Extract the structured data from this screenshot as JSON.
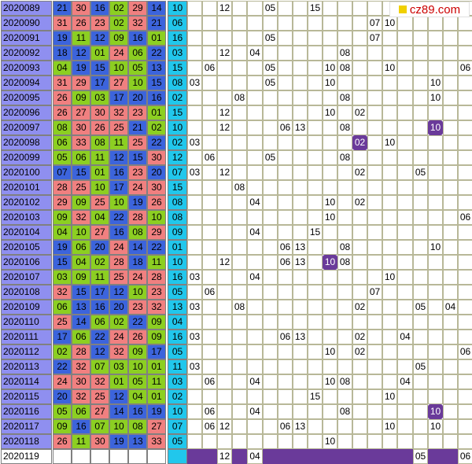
{
  "logo": {
    "text": "cz89.com"
  },
  "colors": {
    "red": "#f08080",
    "green": "#8ccf22",
    "blue": "#3c64dc",
    "blueBall": "#21c7ec",
    "mark": "#6a3a9a",
    "period": "#8f8ff0"
  },
  "rows": [
    {
      "period": "2020089",
      "reds": [
        "21",
        "30",
        "16",
        "02",
        "29",
        "14"
      ],
      "redColors": [
        "b",
        "r",
        "b",
        "g",
        "r",
        "b"
      ],
      "blue": "10",
      "trend": [
        {
          "c": 2,
          "v": "12"
        },
        {
          "c": 5,
          "v": "05"
        },
        {
          "c": 8,
          "v": "15"
        }
      ]
    },
    {
      "period": "2020090",
      "reds": [
        "31",
        "26",
        "23",
        "02",
        "32",
        "21"
      ],
      "redColors": [
        "r",
        "r",
        "r",
        "g",
        "r",
        "b"
      ],
      "blue": "06",
      "trend": [
        {
          "c": 12,
          "v": "07"
        },
        {
          "c": 13,
          "v": "10"
        }
      ]
    },
    {
      "period": "2020091",
      "reds": [
        "19",
        "11",
        "12",
        "09",
        "16",
        "01"
      ],
      "redColors": [
        "b",
        "g",
        "b",
        "g",
        "b",
        "g"
      ],
      "blue": "16",
      "trend": [
        {
          "c": 5,
          "v": "05"
        },
        {
          "c": 12,
          "v": "07"
        }
      ]
    },
    {
      "period": "2020092",
      "reds": [
        "18",
        "12",
        "01",
        "24",
        "06",
        "22"
      ],
      "redColors": [
        "b",
        "b",
        "g",
        "r",
        "g",
        "b"
      ],
      "blue": "03",
      "trend": [
        {
          "c": 2,
          "v": "12"
        },
        {
          "c": 4,
          "v": "04"
        },
        {
          "c": 10,
          "v": "08"
        }
      ]
    },
    {
      "period": "2020093",
      "reds": [
        "04",
        "19",
        "15",
        "10",
        "05",
        "13"
      ],
      "redColors": [
        "g",
        "b",
        "b",
        "g",
        "g",
        "b"
      ],
      "blue": "15",
      "trend": [
        {
          "c": 1,
          "v": "06"
        },
        {
          "c": 5,
          "v": "05"
        },
        {
          "c": 9,
          "v": "10"
        },
        {
          "c": 10,
          "v": "08"
        },
        {
          "c": 13,
          "v": "10"
        },
        {
          "c": 18,
          "v": "06"
        }
      ]
    },
    {
      "period": "2020094",
      "reds": [
        "31",
        "29",
        "17",
        "27",
        "10",
        "15"
      ],
      "redColors": [
        "r",
        "r",
        "b",
        "r",
        "g",
        "b"
      ],
      "blue": "08",
      "trend": [
        {
          "c": 0,
          "v": "03"
        },
        {
          "c": 5,
          "v": "05"
        },
        {
          "c": 9,
          "v": "10"
        },
        {
          "c": 16,
          "v": "10"
        }
      ]
    },
    {
      "period": "2020095",
      "reds": [
        "26",
        "09",
        "03",
        "17",
        "20",
        "16"
      ],
      "redColors": [
        "r",
        "g",
        "g",
        "b",
        "b",
        "b"
      ],
      "blue": "02",
      "trend": [
        {
          "c": 3,
          "v": "08"
        },
        {
          "c": 10,
          "v": "08"
        },
        {
          "c": 16,
          "v": "10"
        }
      ]
    },
    {
      "period": "2020096",
      "reds": [
        "26",
        "27",
        "30",
        "32",
        "23",
        "01"
      ],
      "redColors": [
        "r",
        "r",
        "r",
        "r",
        "r",
        "g"
      ],
      "blue": "15",
      "trend": [
        {
          "c": 2,
          "v": "12"
        },
        {
          "c": 9,
          "v": "10"
        },
        {
          "c": 11,
          "v": "02"
        }
      ]
    },
    {
      "period": "2020097",
      "reds": [
        "08",
        "30",
        "26",
        "25",
        "21",
        "02"
      ],
      "redColors": [
        "g",
        "r",
        "r",
        "r",
        "b",
        "g"
      ],
      "blue": "10",
      "trend": [
        {
          "c": 2,
          "v": "12"
        },
        {
          "c": 6,
          "v": "06"
        },
        {
          "c": 7,
          "v": "13"
        },
        {
          "c": 10,
          "v": "08"
        },
        {
          "c": 16,
          "v": "10",
          "mark": true
        }
      ]
    },
    {
      "period": "2020098",
      "reds": [
        "06",
        "33",
        "08",
        "11",
        "25",
        "22"
      ],
      "redColors": [
        "g",
        "r",
        "g",
        "g",
        "r",
        "b"
      ],
      "blue": "02",
      "trend": [
        {
          "c": 0,
          "v": "03"
        },
        {
          "c": 11,
          "v": "02",
          "mark": true
        },
        {
          "c": 13,
          "v": "10"
        }
      ]
    },
    {
      "period": "2020099",
      "reds": [
        "05",
        "06",
        "11",
        "12",
        "15",
        "30"
      ],
      "redColors": [
        "g",
        "g",
        "g",
        "b",
        "b",
        "r"
      ],
      "blue": "12",
      "trend": [
        {
          "c": 1,
          "v": "06"
        },
        {
          "c": 5,
          "v": "05"
        },
        {
          "c": 10,
          "v": "08"
        }
      ]
    },
    {
      "period": "2020100",
      "reds": [
        "07",
        "15",
        "01",
        "16",
        "23",
        "20"
      ],
      "redColors": [
        "b",
        "b",
        "g",
        "b",
        "r",
        "b"
      ],
      "blue": "07",
      "trend": [
        {
          "c": 0,
          "v": "03"
        },
        {
          "c": 2,
          "v": "12"
        },
        {
          "c": 11,
          "v": "02"
        },
        {
          "c": 15,
          "v": "05"
        }
      ]
    },
    {
      "period": "2020101",
      "reds": [
        "28",
        "25",
        "10",
        "17",
        "24",
        "30"
      ],
      "redColors": [
        "r",
        "r",
        "g",
        "b",
        "r",
        "r"
      ],
      "blue": "15",
      "trend": [
        {
          "c": 3,
          "v": "08"
        }
      ]
    },
    {
      "period": "2020102",
      "reds": [
        "29",
        "09",
        "25",
        "10",
        "19",
        "26"
      ],
      "redColors": [
        "r",
        "g",
        "r",
        "g",
        "b",
        "r"
      ],
      "blue": "08",
      "trend": [
        {
          "c": 4,
          "v": "04"
        },
        {
          "c": 9,
          "v": "10"
        },
        {
          "c": 11,
          "v": "02"
        }
      ]
    },
    {
      "period": "2020103",
      "reds": [
        "09",
        "32",
        "04",
        "22",
        "28",
        "10"
      ],
      "redColors": [
        "g",
        "r",
        "g",
        "b",
        "r",
        "g"
      ],
      "blue": "08",
      "trend": [
        {
          "c": 9,
          "v": "10"
        },
        {
          "c": 18,
          "v": "06"
        }
      ]
    },
    {
      "period": "2020104",
      "reds": [
        "04",
        "10",
        "27",
        "16",
        "08",
        "29"
      ],
      "redColors": [
        "g",
        "g",
        "r",
        "b",
        "g",
        "r"
      ],
      "blue": "09",
      "trend": [
        {
          "c": 4,
          "v": "04"
        },
        {
          "c": 8,
          "v": "15"
        }
      ]
    },
    {
      "period": "2020105",
      "reds": [
        "19",
        "06",
        "20",
        "24",
        "14",
        "22"
      ],
      "redColors": [
        "b",
        "g",
        "b",
        "r",
        "b",
        "b"
      ],
      "blue": "01",
      "trend": [
        {
          "c": 6,
          "v": "06"
        },
        {
          "c": 7,
          "v": "13"
        },
        {
          "c": 10,
          "v": "08"
        },
        {
          "c": 16,
          "v": "10"
        }
      ]
    },
    {
      "period": "2020106",
      "reds": [
        "15",
        "04",
        "02",
        "28",
        "18",
        "11"
      ],
      "redColors": [
        "b",
        "g",
        "g",
        "r",
        "b",
        "g"
      ],
      "blue": "10",
      "trend": [
        {
          "c": 2,
          "v": "12"
        },
        {
          "c": 6,
          "v": "06"
        },
        {
          "c": 7,
          "v": "13"
        },
        {
          "c": 9,
          "v": "10",
          "mark": true
        },
        {
          "c": 10,
          "v": "08"
        }
      ]
    },
    {
      "period": "2020107",
      "reds": [
        "03",
        "09",
        "11",
        "25",
        "24",
        "28"
      ],
      "redColors": [
        "g",
        "g",
        "g",
        "r",
        "r",
        "r"
      ],
      "blue": "16",
      "trend": [
        {
          "c": 0,
          "v": "03"
        },
        {
          "c": 4,
          "v": "04"
        },
        {
          "c": 13,
          "v": "10"
        }
      ]
    },
    {
      "period": "2020108",
      "reds": [
        "32",
        "15",
        "17",
        "12",
        "10",
        "23"
      ],
      "redColors": [
        "r",
        "b",
        "b",
        "b",
        "g",
        "r"
      ],
      "blue": "05",
      "trend": [
        {
          "c": 1,
          "v": "06"
        },
        {
          "c": 12,
          "v": "07"
        }
      ]
    },
    {
      "period": "2020109",
      "reds": [
        "06",
        "13",
        "16",
        "20",
        "23",
        "32"
      ],
      "redColors": [
        "g",
        "b",
        "b",
        "b",
        "r",
        "r"
      ],
      "blue": "13",
      "trend": [
        {
          "c": 0,
          "v": "03"
        },
        {
          "c": 3,
          "v": "08"
        },
        {
          "c": 11,
          "v": "02"
        },
        {
          "c": 15,
          "v": "05"
        },
        {
          "c": 17,
          "v": "04"
        }
      ]
    },
    {
      "period": "2020110",
      "reds": [
        "25",
        "14",
        "06",
        "02",
        "22",
        "09"
      ],
      "redColors": [
        "r",
        "b",
        "g",
        "g",
        "b",
        "g"
      ],
      "blue": "04",
      "trend": []
    },
    {
      "period": "2020111",
      "reds": [
        "17",
        "06",
        "22",
        "24",
        "26",
        "09"
      ],
      "redColors": [
        "b",
        "g",
        "b",
        "r",
        "r",
        "g"
      ],
      "blue": "16",
      "trend": [
        {
          "c": 0,
          "v": "03"
        },
        {
          "c": 6,
          "v": "06"
        },
        {
          "c": 7,
          "v": "13"
        },
        {
          "c": 11,
          "v": "02"
        },
        {
          "c": 14,
          "v": "04"
        }
      ]
    },
    {
      "period": "2020112",
      "reds": [
        "02",
        "28",
        "12",
        "32",
        "09",
        "17"
      ],
      "redColors": [
        "g",
        "r",
        "b",
        "r",
        "g",
        "b"
      ],
      "blue": "05",
      "trend": [
        {
          "c": 9,
          "v": "10"
        },
        {
          "c": 11,
          "v": "02"
        },
        {
          "c": 18,
          "v": "06"
        }
      ]
    },
    {
      "period": "2020113",
      "reds": [
        "22",
        "32",
        "07",
        "03",
        "10",
        "01"
      ],
      "redColors": [
        "b",
        "r",
        "g",
        "g",
        "g",
        "g"
      ],
      "blue": "11",
      "trend": [
        {
          "c": 0,
          "v": "03"
        },
        {
          "c": 15,
          "v": "05"
        }
      ]
    },
    {
      "period": "2020114",
      "reds": [
        "24",
        "30",
        "32",
        "01",
        "05",
        "11"
      ],
      "redColors": [
        "r",
        "r",
        "r",
        "g",
        "g",
        "g"
      ],
      "blue": "03",
      "trend": [
        {
          "c": 1,
          "v": "06"
        },
        {
          "c": 4,
          "v": "04"
        },
        {
          "c": 9,
          "v": "10"
        },
        {
          "c": 10,
          "v": "08"
        },
        {
          "c": 14,
          "v": "04"
        }
      ]
    },
    {
      "period": "2020115",
      "reds": [
        "20",
        "32",
        "25",
        "12",
        "04",
        "01"
      ],
      "redColors": [
        "b",
        "r",
        "r",
        "b",
        "g",
        "g"
      ],
      "blue": "02",
      "trend": [
        {
          "c": 8,
          "v": "15"
        },
        {
          "c": 13,
          "v": "10"
        }
      ]
    },
    {
      "period": "2020116",
      "reds": [
        "05",
        "06",
        "27",
        "14",
        "16",
        "19"
      ],
      "redColors": [
        "g",
        "g",
        "r",
        "b",
        "b",
        "b"
      ],
      "blue": "10",
      "trend": [
        {
          "c": 1,
          "v": "06"
        },
        {
          "c": 4,
          "v": "04"
        },
        {
          "c": 10,
          "v": "08"
        },
        {
          "c": 16,
          "v": "10",
          "mark": true
        }
      ]
    },
    {
      "period": "2020117",
      "reds": [
        "09",
        "16",
        "07",
        "10",
        "08",
        "27"
      ],
      "redColors": [
        "g",
        "b",
        "g",
        "g",
        "g",
        "r"
      ],
      "blue": "07",
      "trend": [
        {
          "c": 1,
          "v": "06"
        },
        {
          "c": 2,
          "v": "12"
        },
        {
          "c": 6,
          "v": "06"
        },
        {
          "c": 7,
          "v": "13"
        },
        {
          "c": 13,
          "v": "10"
        },
        {
          "c": 16,
          "v": "10"
        }
      ]
    },
    {
      "period": "2020118",
      "reds": [
        "26",
        "11",
        "30",
        "19",
        "13",
        "33"
      ],
      "redColors": [
        "r",
        "g",
        "r",
        "b",
        "b",
        "r"
      ],
      "blue": "05",
      "trend": [
        {
          "c": 9,
          "v": "10"
        }
      ]
    },
    {
      "period": "2020119",
      "reds": [
        "",
        "",
        "",
        "",
        "",
        ""
      ],
      "redColors": [
        "e",
        "e",
        "e",
        "e",
        "e",
        "e"
      ],
      "blue": "",
      "last": true,
      "trend": [
        {
          "c": 2,
          "v": "12"
        },
        {
          "c": 4,
          "v": "04"
        },
        {
          "c": 15,
          "v": "05"
        },
        {
          "c": 18,
          "v": "06"
        }
      ],
      "filled": [
        0,
        1,
        3,
        5,
        6,
        7,
        8,
        9,
        10,
        11,
        12,
        13,
        14,
        16,
        17
      ]
    }
  ]
}
